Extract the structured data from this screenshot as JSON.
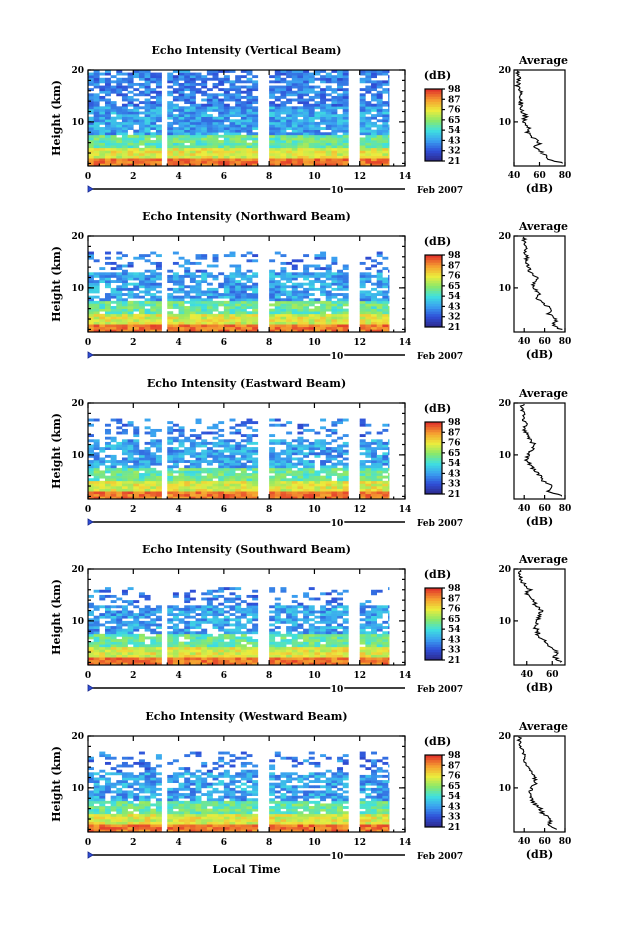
{
  "chart_data": [
    {
      "type": "heatmap",
      "title": "Echo Intensity (Vertical Beam)",
      "ylabel": "Height (km)",
      "xlabel": "",
      "xlim": [
        0,
        14
      ],
      "ylim": [
        1.5,
        20
      ],
      "xticks": [
        0,
        2,
        4,
        6,
        8,
        10,
        12,
        14
      ],
      "yticks": [
        10,
        20
      ],
      "date_day": "10",
      "date_month": "Feb 2007",
      "colorbar": {
        "label": "(dB)",
        "levels": [
          21,
          32,
          43,
          54,
          65,
          76,
          87,
          98
        ]
      },
      "data_gaps": [
        [
          3.2,
          3.45
        ],
        [
          7.6,
          7.72
        ],
        [
          7.85,
          7.97
        ],
        [
          11.5,
          11.9
        ]
      ],
      "data_end": 13.3,
      "profile": {
        "title": "Average",
        "xlabel": "(dB)",
        "xlim": [
          40,
          80
        ],
        "xticks": [
          40,
          60,
          80
        ],
        "ylim": [
          1.5,
          20
        ],
        "yticks": [
          10,
          20
        ],
        "heights": [
          2,
          3,
          4,
          5,
          6,
          7,
          8,
          9,
          10,
          11,
          12,
          13,
          14,
          15,
          16,
          17,
          18,
          19,
          20
        ],
        "values": [
          78,
          66,
          63,
          56,
          60,
          54,
          50,
          52,
          48,
          49,
          47,
          45,
          46,
          44,
          45,
          43,
          44,
          43,
          44
        ]
      }
    },
    {
      "type": "heatmap",
      "title": "Echo Intensity (Northward Beam)",
      "ylabel": "Height (km)",
      "xlabel": "",
      "xlim": [
        0,
        14
      ],
      "ylim": [
        1.5,
        20
      ],
      "xticks": [
        0,
        2,
        4,
        6,
        8,
        10,
        12,
        14
      ],
      "yticks": [
        10,
        20
      ],
      "date_day": "10",
      "date_month": "Feb 2007",
      "colorbar": {
        "label": "(dB)",
        "levels": [
          21,
          32,
          43,
          54,
          65,
          76,
          87,
          98
        ]
      },
      "data_gaps": [
        [
          3.2,
          3.45
        ],
        [
          7.6,
          7.72
        ],
        [
          7.85,
          7.97
        ],
        [
          11.5,
          11.9
        ]
      ],
      "data_end": 13.3,
      "profile": {
        "title": "Average",
        "xlabel": "(dB)",
        "xlim": [
          30,
          80
        ],
        "xticks": [
          40,
          60,
          80
        ],
        "ylim": [
          1.5,
          20
        ],
        "yticks": [
          10,
          20
        ],
        "heights": [
          2,
          3,
          4,
          5,
          6,
          7,
          8,
          9,
          10,
          11,
          12,
          13,
          14,
          15,
          16,
          17,
          18,
          19,
          20
        ],
        "values": [
          76,
          68,
          72,
          64,
          66,
          58,
          52,
          55,
          48,
          50,
          53,
          46,
          44,
          43,
          42,
          41,
          42,
          40,
          41
        ]
      }
    },
    {
      "type": "heatmap",
      "title": "Echo Intensity (Eastward Beam)",
      "ylabel": "Height (km)",
      "xlabel": "",
      "xlim": [
        0,
        14
      ],
      "ylim": [
        1.5,
        20
      ],
      "xticks": [
        0,
        2,
        4,
        6,
        8,
        10,
        12,
        14
      ],
      "yticks": [
        10,
        20
      ],
      "date_day": "10",
      "date_month": "Feb 2007",
      "colorbar": {
        "label": "(dB)",
        "levels": [
          21,
          33,
          43,
          54,
          65,
          76,
          87,
          98
        ]
      },
      "data_gaps": [
        [
          3.2,
          3.45
        ],
        [
          7.6,
          7.72
        ],
        [
          7.85,
          7.97
        ],
        [
          11.5,
          11.9
        ]
      ],
      "data_end": 13.3,
      "profile": {
        "title": "Average",
        "xlabel": "(dB)",
        "xlim": [
          30,
          80
        ],
        "xticks": [
          40,
          60,
          80
        ],
        "ylim": [
          1.5,
          20
        ],
        "yticks": [
          10,
          20
        ],
        "heights": [
          2,
          3,
          4,
          5,
          6,
          7,
          8,
          9,
          10,
          11,
          12,
          13,
          14,
          15,
          16,
          17,
          18,
          19,
          20
        ],
        "values": [
          78,
          64,
          68,
          58,
          56,
          50,
          46,
          42,
          44,
          48,
          50,
          45,
          43,
          40,
          41,
          39,
          40,
          38,
          39
        ]
      }
    },
    {
      "type": "heatmap",
      "title": "Echo Intensity (Southward Beam)",
      "ylabel": "Height (km)",
      "xlabel": "",
      "xlim": [
        0,
        14
      ],
      "ylim": [
        1.5,
        20
      ],
      "xticks": [
        0,
        2,
        4,
        6,
        8,
        10,
        12,
        14
      ],
      "yticks": [
        10,
        20
      ],
      "date_day": "10",
      "date_month": "Feb 2007",
      "colorbar": {
        "label": "(dB)",
        "levels": [
          21,
          33,
          43,
          54,
          65,
          76,
          87,
          98
        ]
      },
      "data_gaps": [
        [
          3.2,
          3.45
        ],
        [
          7.6,
          7.72
        ],
        [
          7.85,
          7.97
        ],
        [
          11.5,
          11.9
        ]
      ],
      "data_end": 13.3,
      "profile": {
        "title": "Average",
        "xlabel": "(dB)",
        "xlim": [
          30,
          70
        ],
        "xticks": [
          40,
          60
        ],
        "ylim": [
          1.5,
          20
        ],
        "yticks": [
          10,
          20
        ],
        "heights": [
          2,
          3,
          4,
          5,
          6,
          7,
          8,
          9,
          10,
          11,
          12,
          13,
          14,
          15,
          16,
          17,
          18,
          19,
          20
        ],
        "values": [
          68,
          62,
          64,
          58,
          54,
          50,
          48,
          46,
          48,
          50,
          52,
          47,
          44,
          40,
          42,
          38,
          36,
          34,
          35
        ]
      }
    },
    {
      "type": "heatmap",
      "title": "Echo Intensity (Westward Beam)",
      "ylabel": "Height (km)",
      "xlabel": "Local Time",
      "xlim": [
        0,
        14
      ],
      "ylim": [
        1.5,
        20
      ],
      "xticks": [
        0,
        2,
        4,
        6,
        8,
        10,
        12,
        14
      ],
      "yticks": [
        10,
        20
      ],
      "date_day": "10",
      "date_month": "Feb 2007",
      "colorbar": {
        "label": "(dB)",
        "levels": [
          21,
          33,
          43,
          54,
          65,
          76,
          87,
          98
        ]
      },
      "data_gaps": [
        [
          3.2,
          3.45
        ],
        [
          7.6,
          7.72
        ],
        [
          7.85,
          7.97
        ],
        [
          11.5,
          11.9
        ]
      ],
      "data_end": 13.3,
      "profile": {
        "title": "Average",
        "xlabel": "(dB)",
        "xlim": [
          30,
          80
        ],
        "xticks": [
          40,
          60,
          80
        ],
        "ylim": [
          1.5,
          20
        ],
        "yticks": [
          10,
          20
        ],
        "heights": [
          2,
          3,
          4,
          5,
          6,
          7,
          8,
          9,
          10,
          11,
          12,
          13,
          14,
          15,
          16,
          17,
          18,
          19,
          20
        ],
        "values": [
          70,
          64,
          66,
          58,
          56,
          50,
          47,
          45,
          47,
          52,
          50,
          46,
          44,
          40,
          41,
          38,
          37,
          35,
          36
        ]
      }
    }
  ]
}
